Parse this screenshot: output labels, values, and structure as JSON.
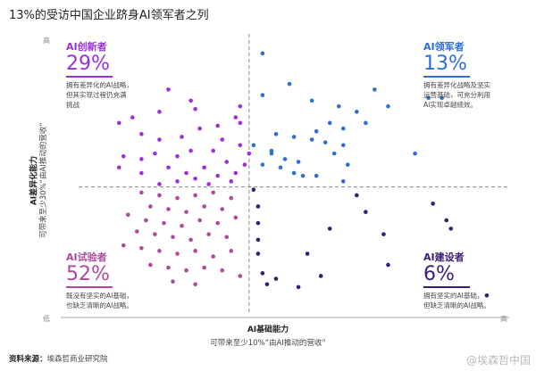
{
  "title": "13%的受访中国企业跻身AI领军者之列",
  "quadrants": {
    "tl": {
      "label": "AI创新者",
      "pct": "29%",
      "desc": "拥有差异化的AI战略，\n但其实现过程仍充满\n挑战",
      "color": "#9b30d9"
    },
    "tr": {
      "label": "AI领军者",
      "pct": "13%",
      "desc": "拥有差异化战略及坚实\n运营基础，可充分利用\nAI实现卓越绩效。",
      "color": "#2d6fd6"
    },
    "bl": {
      "label": "AI试验者",
      "pct": "52%",
      "desc": "既没有坚实的AI基础，\n也缺乏清晰的AI战略。",
      "color": "#b0489e"
    },
    "br": {
      "label": "AI建设者",
      "pct": "6%",
      "desc": "拥有坚实的AI基础，\n但缺乏清晰的AI战略。",
      "color": "#3c1a78"
    }
  },
  "axes": {
    "x_title": "AI基础能力",
    "x_sub": "可带来至少10%“由AI推动的营收”",
    "y_title": "AI差异化能力",
    "y_sub": "可带来至少30%“由AI推动的营收”",
    "high": "高",
    "low": "低"
  },
  "source_label": "资料来源：",
  "source_text": "埃森哲商业研究院",
  "watermark": "@埃森哲中国",
  "chart_data": {
    "type": "scatter",
    "xlim": [
      0,
      1
    ],
    "ylim": [
      0,
      1
    ],
    "divider_x": 0.42,
    "divider_y": 0.45,
    "grid": false,
    "series": [
      {
        "color": "#2d6fd6",
        "points": [
          [
            0.45,
            0.93
          ],
          [
            0.51,
            0.82
          ],
          [
            0.45,
            0.78
          ],
          [
            0.56,
            0.76
          ],
          [
            0.62,
            0.74
          ],
          [
            0.66,
            0.72
          ],
          [
            0.68,
            0.68
          ],
          [
            0.48,
            0.64
          ],
          [
            0.43,
            0.6
          ],
          [
            0.47,
            0.58
          ],
          [
            0.52,
            0.63
          ],
          [
            0.57,
            0.65
          ],
          [
            0.6,
            0.68
          ],
          [
            0.63,
            0.66
          ],
          [
            0.47,
            0.57
          ],
          [
            0.56,
            0.62
          ],
          [
            0.59,
            0.61
          ],
          [
            0.63,
            0.6
          ],
          [
            0.61,
            0.57
          ],
          [
            0.5,
            0.55
          ],
          [
            0.53,
            0.54
          ],
          [
            0.45,
            0.53
          ],
          [
            0.49,
            0.52
          ],
          [
            0.64,
            0.53
          ],
          [
            0.52,
            0.5
          ],
          [
            0.54,
            0.49
          ],
          [
            0.57,
            0.49
          ],
          [
            0.63,
            0.47
          ],
          [
            0.7,
            0.8
          ],
          [
            0.73,
            0.74
          ],
          [
            0.85,
            0.77
          ],
          [
            0.82,
            0.77
          ],
          [
            0.79,
            0.57
          ]
        ]
      },
      {
        "color": "#9b30d9",
        "points": [
          [
            0.24,
            0.8
          ],
          [
            0.29,
            0.76
          ],
          [
            0.3,
            0.73
          ],
          [
            0.22,
            0.72
          ],
          [
            0.16,
            0.7
          ],
          [
            0.13,
            0.68
          ],
          [
            0.18,
            0.64
          ],
          [
            0.22,
            0.62
          ],
          [
            0.27,
            0.63
          ],
          [
            0.31,
            0.66
          ],
          [
            0.35,
            0.67
          ],
          [
            0.39,
            0.7
          ],
          [
            0.4,
            0.68
          ],
          [
            0.36,
            0.62
          ],
          [
            0.4,
            0.6
          ],
          [
            0.34,
            0.58
          ],
          [
            0.29,
            0.58
          ],
          [
            0.26,
            0.56
          ],
          [
            0.21,
            0.57
          ],
          [
            0.18,
            0.55
          ],
          [
            0.14,
            0.56
          ],
          [
            0.13,
            0.52
          ],
          [
            0.18,
            0.5
          ],
          [
            0.24,
            0.52
          ],
          [
            0.28,
            0.5
          ],
          [
            0.32,
            0.52
          ],
          [
            0.37,
            0.54
          ],
          [
            0.41,
            0.53
          ],
          [
            0.39,
            0.5
          ],
          [
            0.35,
            0.49
          ],
          [
            0.3,
            0.48
          ],
          [
            0.26,
            0.47
          ],
          [
            0.22,
            0.46
          ],
          [
            0.33,
            0.46
          ],
          [
            0.38,
            0.47
          ],
          [
            0.42,
            0.57
          ],
          [
            0.4,
            0.74
          ]
        ]
      },
      {
        "color": "#b0489e",
        "points": [
          [
            0.18,
            0.43
          ],
          [
            0.22,
            0.42
          ],
          [
            0.26,
            0.41
          ],
          [
            0.3,
            0.42
          ],
          [
            0.34,
            0.43
          ],
          [
            0.38,
            0.41
          ],
          [
            0.2,
            0.38
          ],
          [
            0.24,
            0.37
          ],
          [
            0.28,
            0.36
          ],
          [
            0.32,
            0.38
          ],
          [
            0.36,
            0.37
          ],
          [
            0.15,
            0.35
          ],
          [
            0.19,
            0.33
          ],
          [
            0.23,
            0.32
          ],
          [
            0.27,
            0.31
          ],
          [
            0.31,
            0.33
          ],
          [
            0.35,
            0.32
          ],
          [
            0.39,
            0.34
          ],
          [
            0.17,
            0.29
          ],
          [
            0.21,
            0.28
          ],
          [
            0.25,
            0.27
          ],
          [
            0.29,
            0.26
          ],
          [
            0.33,
            0.28
          ],
          [
            0.37,
            0.27
          ],
          [
            0.14,
            0.24
          ],
          [
            0.18,
            0.23
          ],
          [
            0.22,
            0.22
          ],
          [
            0.26,
            0.21
          ],
          [
            0.3,
            0.22
          ],
          [
            0.34,
            0.2
          ],
          [
            0.38,
            0.22
          ],
          [
            0.2,
            0.17
          ],
          [
            0.24,
            0.16
          ],
          [
            0.28,
            0.15
          ],
          [
            0.32,
            0.16
          ],
          [
            0.36,
            0.15
          ],
          [
            0.25,
            0.11
          ],
          [
            0.3,
            0.1
          ],
          [
            0.4,
            0.13
          ]
        ]
      },
      {
        "color": "#3c1a78",
        "points": [
          [
            0.43,
            0.44
          ],
          [
            0.44,
            0.38
          ],
          [
            0.44,
            0.32
          ],
          [
            0.44,
            0.26
          ],
          [
            0.44,
            0.21
          ],
          [
            0.45,
            0.14
          ],
          [
            0.46,
            0.1
          ],
          [
            0.48,
            0.12
          ],
          [
            0.53,
            0.09
          ],
          [
            0.55,
            0.21
          ],
          [
            0.58,
            0.13
          ],
          [
            0.6,
            0.3
          ],
          [
            0.66,
            0.42
          ],
          [
            0.68,
            0.36
          ],
          [
            0.72,
            0.28
          ],
          [
            0.73,
            0.17
          ],
          [
            0.83,
            0.39
          ],
          [
            0.86,
            0.33
          ],
          [
            0.87,
            0.3
          ],
          [
            0.95,
            0.06
          ]
        ]
      }
    ]
  }
}
